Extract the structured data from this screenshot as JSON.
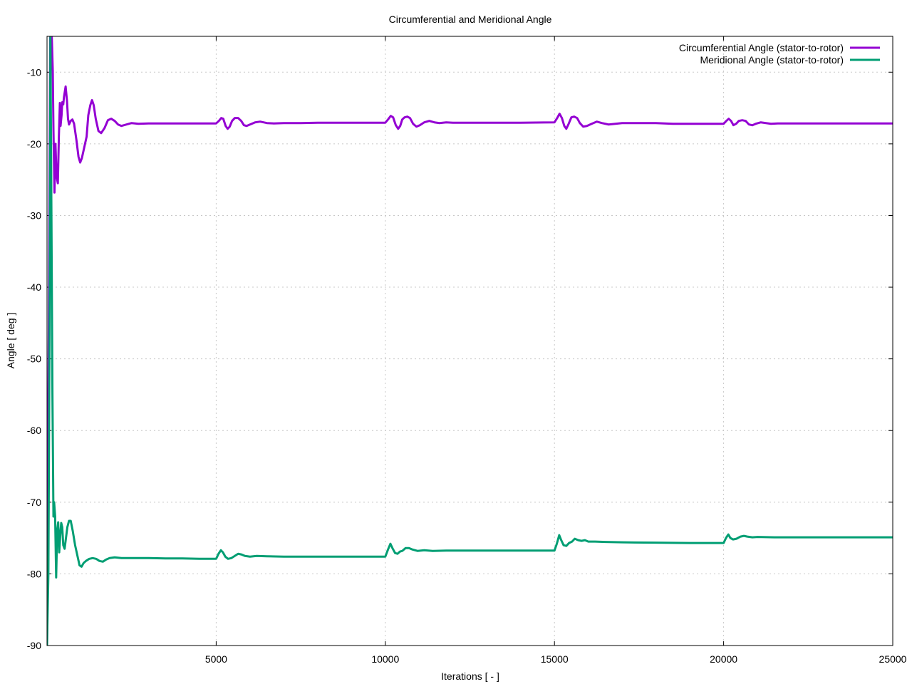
{
  "chart_data": {
    "type": "line",
    "title": "Circumferential and Meridional Angle",
    "xlabel": "Iterations [ - ]",
    "ylabel": "Angle [ deg ]",
    "xlim": [
      0,
      25000
    ],
    "ylim": [
      -90,
      -5
    ],
    "xticks": [
      5000,
      10000,
      15000,
      20000,
      25000
    ],
    "yticks": [
      -90,
      -80,
      -70,
      -60,
      -50,
      -40,
      -30,
      -20,
      -10
    ],
    "grid": true,
    "legend_position": "top-right",
    "series": [
      {
        "name": "Circumferential Angle (stator-to-rotor)",
        "color": "#9400d3",
        "points": [
          [
            0,
            -90
          ],
          [
            60,
            -40
          ],
          [
            100,
            0
          ],
          [
            140,
            -5
          ],
          [
            170,
            -9.8
          ],
          [
            190,
            -18
          ],
          [
            220,
            -26.8
          ],
          [
            250,
            -20
          ],
          [
            280,
            -24.5
          ],
          [
            320,
            -25.5
          ],
          [
            350,
            -19
          ],
          [
            380,
            -14.3
          ],
          [
            400,
            -17.5
          ],
          [
            430,
            -16
          ],
          [
            450,
            -14.2
          ],
          [
            480,
            -14.5
          ],
          [
            500,
            -13.5
          ],
          [
            550,
            -12
          ],
          [
            590,
            -14
          ],
          [
            620,
            -16.5
          ],
          [
            650,
            -17.3
          ],
          [
            700,
            -16.8
          ],
          [
            750,
            -16.6
          ],
          [
            800,
            -17.2
          ],
          [
            870,
            -19.5
          ],
          [
            930,
            -21.8
          ],
          [
            980,
            -22.6
          ],
          [
            1030,
            -22
          ],
          [
            1100,
            -20.5
          ],
          [
            1170,
            -19
          ],
          [
            1220,
            -16
          ],
          [
            1280,
            -14.6
          ],
          [
            1330,
            -13.9
          ],
          [
            1380,
            -14.6
          ],
          [
            1440,
            -16.5
          ],
          [
            1520,
            -18.2
          ],
          [
            1600,
            -18.5
          ],
          [
            1700,
            -17.8
          ],
          [
            1800,
            -16.7
          ],
          [
            1900,
            -16.5
          ],
          [
            2000,
            -16.8
          ],
          [
            2100,
            -17.3
          ],
          [
            2200,
            -17.5
          ],
          [
            2350,
            -17.3
          ],
          [
            2500,
            -17.1
          ],
          [
            2700,
            -17.2
          ],
          [
            3000,
            -17.15
          ],
          [
            3500,
            -17.15
          ],
          [
            4000,
            -17.15
          ],
          [
            4500,
            -17.15
          ],
          [
            5000,
            -17.15
          ],
          [
            5080,
            -16.8
          ],
          [
            5150,
            -16.4
          ],
          [
            5210,
            -16.5
          ],
          [
            5280,
            -17.5
          ],
          [
            5340,
            -17.9
          ],
          [
            5400,
            -17.6
          ],
          [
            5470,
            -16.8
          ],
          [
            5550,
            -16.4
          ],
          [
            5650,
            -16.4
          ],
          [
            5740,
            -16.8
          ],
          [
            5820,
            -17.4
          ],
          [
            5900,
            -17.5
          ],
          [
            6000,
            -17.3
          ],
          [
            6150,
            -17.0
          ],
          [
            6300,
            -16.9
          ],
          [
            6500,
            -17.1
          ],
          [
            6700,
            -17.15
          ],
          [
            7000,
            -17.1
          ],
          [
            7500,
            -17.1
          ],
          [
            8000,
            -17.05
          ],
          [
            9000,
            -17.05
          ],
          [
            10000,
            -17.05
          ],
          [
            10080,
            -16.6
          ],
          [
            10160,
            -16.1
          ],
          [
            10230,
            -16.3
          ],
          [
            10310,
            -17.4
          ],
          [
            10380,
            -17.9
          ],
          [
            10440,
            -17.5
          ],
          [
            10500,
            -16.6
          ],
          [
            10570,
            -16.3
          ],
          [
            10650,
            -16.2
          ],
          [
            10730,
            -16.4
          ],
          [
            10820,
            -17.2
          ],
          [
            10920,
            -17.6
          ],
          [
            11020,
            -17.4
          ],
          [
            11150,
            -17.0
          ],
          [
            11300,
            -16.8
          ],
          [
            11450,
            -17.0
          ],
          [
            11600,
            -17.1
          ],
          [
            11800,
            -17.0
          ],
          [
            12000,
            -17.05
          ],
          [
            13000,
            -17.05
          ],
          [
            14000,
            -17.05
          ],
          [
            15000,
            -17.0
          ],
          [
            15080,
            -16.4
          ],
          [
            15150,
            -15.8
          ],
          [
            15220,
            -16.4
          ],
          [
            15290,
            -17.5
          ],
          [
            15350,
            -17.9
          ],
          [
            15420,
            -17.2
          ],
          [
            15500,
            -16.3
          ],
          [
            15580,
            -16.2
          ],
          [
            15670,
            -16.4
          ],
          [
            15750,
            -17.1
          ],
          [
            15850,
            -17.6
          ],
          [
            15960,
            -17.5
          ],
          [
            16100,
            -17.2
          ],
          [
            16250,
            -16.9
          ],
          [
            16400,
            -17.1
          ],
          [
            16600,
            -17.3
          ],
          [
            16800,
            -17.2
          ],
          [
            17000,
            -17.1
          ],
          [
            17500,
            -17.1
          ],
          [
            18000,
            -17.1
          ],
          [
            18500,
            -17.2
          ],
          [
            19000,
            -17.2
          ],
          [
            19500,
            -17.2
          ],
          [
            20000,
            -17.2
          ],
          [
            20080,
            -16.8
          ],
          [
            20150,
            -16.5
          ],
          [
            20220,
            -16.8
          ],
          [
            20290,
            -17.4
          ],
          [
            20370,
            -17.2
          ],
          [
            20450,
            -16.8
          ],
          [
            20550,
            -16.7
          ],
          [
            20650,
            -16.8
          ],
          [
            20750,
            -17.3
          ],
          [
            20850,
            -17.4
          ],
          [
            20950,
            -17.2
          ],
          [
            21100,
            -17.0
          ],
          [
            21250,
            -17.1
          ],
          [
            21400,
            -17.2
          ],
          [
            21600,
            -17.15
          ],
          [
            22000,
            -17.15
          ],
          [
            23000,
            -17.15
          ],
          [
            24000,
            -17.15
          ],
          [
            25000,
            -17.15
          ]
        ]
      },
      {
        "name": "Meridional Angle (stator-to-rotor)",
        "color": "#009e73",
        "points": [
          [
            0,
            -90
          ],
          [
            40,
            -80
          ],
          [
            80,
            -40
          ],
          [
            100,
            -5
          ],
          [
            130,
            -30
          ],
          [
            160,
            -55
          ],
          [
            190,
            -72
          ],
          [
            210,
            -70
          ],
          [
            240,
            -72
          ],
          [
            270,
            -80.5
          ],
          [
            300,
            -74
          ],
          [
            330,
            -72.8
          ],
          [
            360,
            -77
          ],
          [
            400,
            -74
          ],
          [
            420,
            -72.9
          ],
          [
            450,
            -73.5
          ],
          [
            480,
            -76
          ],
          [
            520,
            -76.5
          ],
          [
            560,
            -75
          ],
          [
            600,
            -73.5
          ],
          [
            650,
            -72.6
          ],
          [
            700,
            -72.6
          ],
          [
            760,
            -74
          ],
          [
            830,
            -76
          ],
          [
            900,
            -77.5
          ],
          [
            960,
            -78.8
          ],
          [
            1020,
            -79
          ],
          [
            1080,
            -78.5
          ],
          [
            1150,
            -78.2
          ],
          [
            1250,
            -77.9
          ],
          [
            1350,
            -77.8
          ],
          [
            1450,
            -77.9
          ],
          [
            1550,
            -78.2
          ],
          [
            1650,
            -78.3
          ],
          [
            1750,
            -78.0
          ],
          [
            1850,
            -77.8
          ],
          [
            2000,
            -77.7
          ],
          [
            2200,
            -77.8
          ],
          [
            2500,
            -77.8
          ],
          [
            3000,
            -77.8
          ],
          [
            3500,
            -77.85
          ],
          [
            4000,
            -77.85
          ],
          [
            4500,
            -77.9
          ],
          [
            5000,
            -77.9
          ],
          [
            5070,
            -77.2
          ],
          [
            5140,
            -76.7
          ],
          [
            5200,
            -77.0
          ],
          [
            5270,
            -77.6
          ],
          [
            5350,
            -77.9
          ],
          [
            5450,
            -77.8
          ],
          [
            5550,
            -77.5
          ],
          [
            5650,
            -77.2
          ],
          [
            5750,
            -77.3
          ],
          [
            5850,
            -77.5
          ],
          [
            6000,
            -77.6
          ],
          [
            6200,
            -77.5
          ],
          [
            6500,
            -77.55
          ],
          [
            7000,
            -77.6
          ],
          [
            8000,
            -77.6
          ],
          [
            9000,
            -77.6
          ],
          [
            10000,
            -77.6
          ],
          [
            10080,
            -76.6
          ],
          [
            10150,
            -75.8
          ],
          [
            10220,
            -76.5
          ],
          [
            10290,
            -77.1
          ],
          [
            10360,
            -77.2
          ],
          [
            10430,
            -76.9
          ],
          [
            10500,
            -76.8
          ],
          [
            10600,
            -76.4
          ],
          [
            10700,
            -76.4
          ],
          [
            10800,
            -76.6
          ],
          [
            10950,
            -76.8
          ],
          [
            11150,
            -76.7
          ],
          [
            11400,
            -76.8
          ],
          [
            11800,
            -76.75
          ],
          [
            12500,
            -76.75
          ],
          [
            13500,
            -76.75
          ],
          [
            14500,
            -76.75
          ],
          [
            15000,
            -76.75
          ],
          [
            15070,
            -75.8
          ],
          [
            15140,
            -74.6
          ],
          [
            15200,
            -75.3
          ],
          [
            15270,
            -76.0
          ],
          [
            15350,
            -76.1
          ],
          [
            15430,
            -75.7
          ],
          [
            15520,
            -75.5
          ],
          [
            15600,
            -75.1
          ],
          [
            15700,
            -75.3
          ],
          [
            15800,
            -75.4
          ],
          [
            15900,
            -75.3
          ],
          [
            16000,
            -75.5
          ],
          [
            16200,
            -75.5
          ],
          [
            16500,
            -75.55
          ],
          [
            17000,
            -75.6
          ],
          [
            18000,
            -75.65
          ],
          [
            19000,
            -75.7
          ],
          [
            20000,
            -75.7
          ],
          [
            20070,
            -75.0
          ],
          [
            20140,
            -74.5
          ],
          [
            20200,
            -75.0
          ],
          [
            20280,
            -75.2
          ],
          [
            20380,
            -75.1
          ],
          [
            20500,
            -74.8
          ],
          [
            20600,
            -74.7
          ],
          [
            20700,
            -74.8
          ],
          [
            20850,
            -74.9
          ],
          [
            21000,
            -74.85
          ],
          [
            21500,
            -74.9
          ],
          [
            22000,
            -74.9
          ],
          [
            23000,
            -74.9
          ],
          [
            24000,
            -74.9
          ],
          [
            25000,
            -74.9
          ]
        ]
      }
    ]
  }
}
